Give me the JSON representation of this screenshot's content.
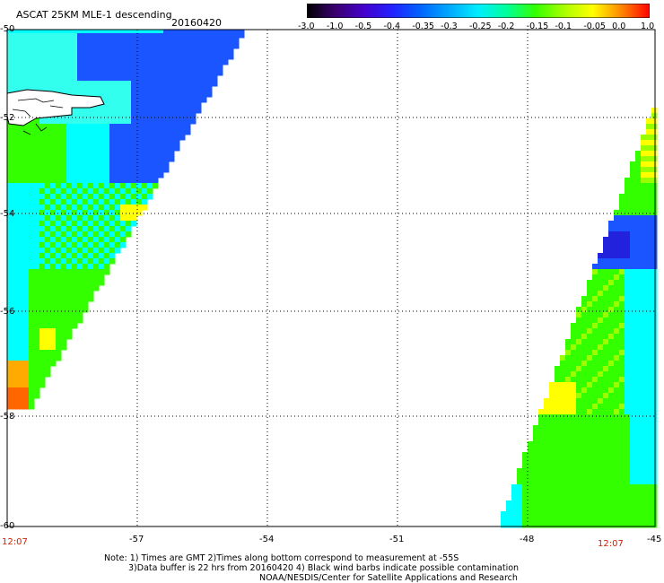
{
  "header": {
    "title": "ASCAT 25KM MLE-1 descending",
    "date": "20160420"
  },
  "colorbar": {
    "labels": [
      "-3.0",
      "-1.0",
      "-0.5",
      "-0.4",
      "-0.35",
      "-0.3",
      "-0.25",
      "-0.2",
      "-0.15",
      "-0.1",
      "-0.05",
      "0.0",
      "1.0"
    ],
    "colors": [
      "#000000",
      "#3a0070",
      "#4400cc",
      "#2222ff",
      "#0066ff",
      "#00aaff",
      "#00eeff",
      "#00ff99",
      "#33ff00",
      "#aaff00",
      "#ffff00",
      "#ff8800",
      "#ff0000"
    ]
  },
  "axes": {
    "lat_labels": [
      "-50",
      "-52",
      "-54",
      "-56",
      "-58",
      "-60"
    ],
    "lon_labels": [
      "-57",
      "-54",
      "-51",
      "-48",
      "-45"
    ],
    "left_time": "12:07",
    "right_time": "12:07"
  },
  "notes": [
    "Note: 1) Times are GMT 2)Times along bottom correspond to measurement at -55S",
    "3)Data buffer is 22 hrs from 20160420 4) Black wind barbs indicate possible contamination",
    "NOAA/NESDIS/Center for Satellite Applications and Research"
  ],
  "map_colors": {
    "blue": "#1a55ff",
    "deep_blue": "#2222dd",
    "cyan": "#00ffff",
    "light_cyan": "#33ffee",
    "green": "#33ff00",
    "lime": "#99ff00",
    "yellow": "#ffff00",
    "orange": "#ffaa00",
    "red_orange": "#ff6600"
  }
}
